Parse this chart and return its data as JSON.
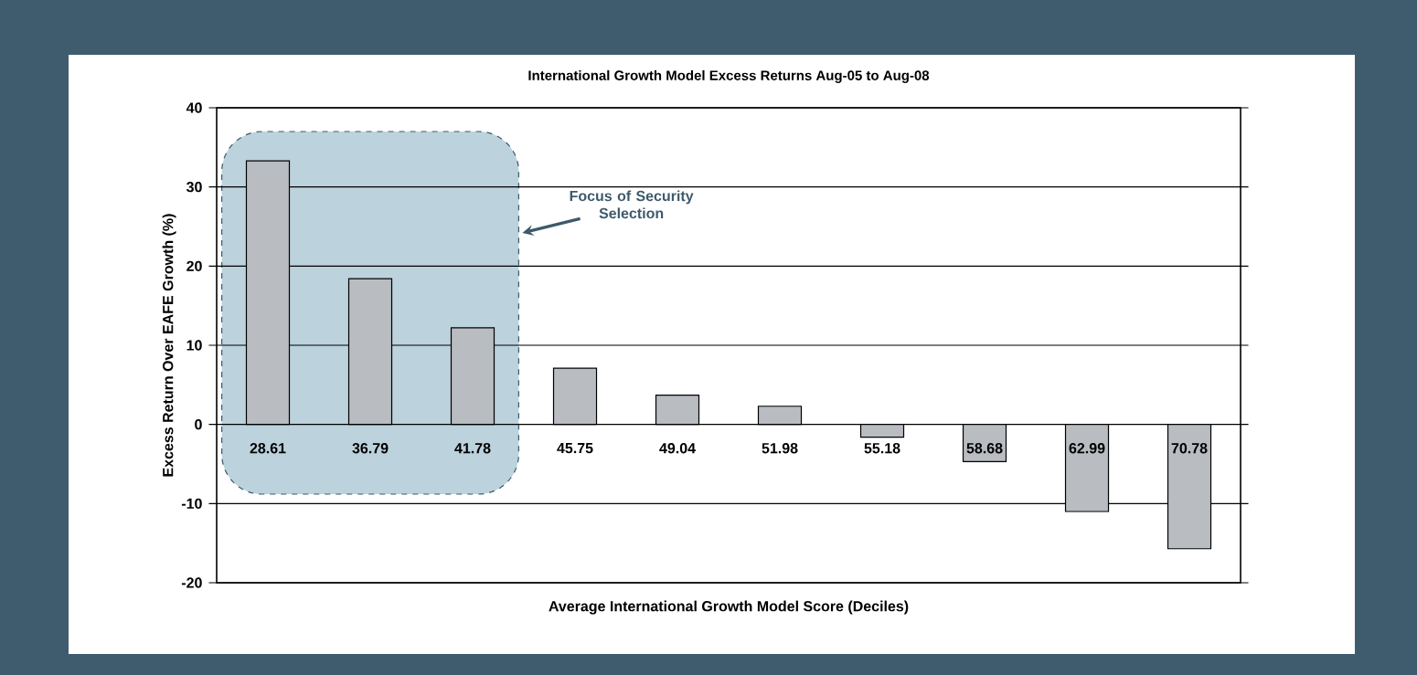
{
  "chart_data": {
    "type": "bar",
    "title": "International Growth Model Excess Returns Aug-05 to Aug-08",
    "xlabel": "Average International Growth Model Score (Deciles)",
    "ylabel": "Excess Return Over EAFE Growth (%)",
    "categories": [
      "28.61",
      "36.79",
      "41.78",
      "45.75",
      "49.04",
      "51.98",
      "55.18",
      "58.68",
      "62.99",
      "70.78"
    ],
    "values": [
      33.3,
      18.4,
      12.2,
      7.1,
      3.7,
      2.3,
      -1.6,
      -4.7,
      -11.0,
      -15.7
    ],
    "color": "#b9bcc1",
    "ylim": [
      -20,
      40
    ],
    "yticks": [
      -20,
      -10,
      0,
      10,
      20,
      30,
      40
    ],
    "grid": "y",
    "annotations": [
      "Focus of Security Selection"
    ]
  }
}
